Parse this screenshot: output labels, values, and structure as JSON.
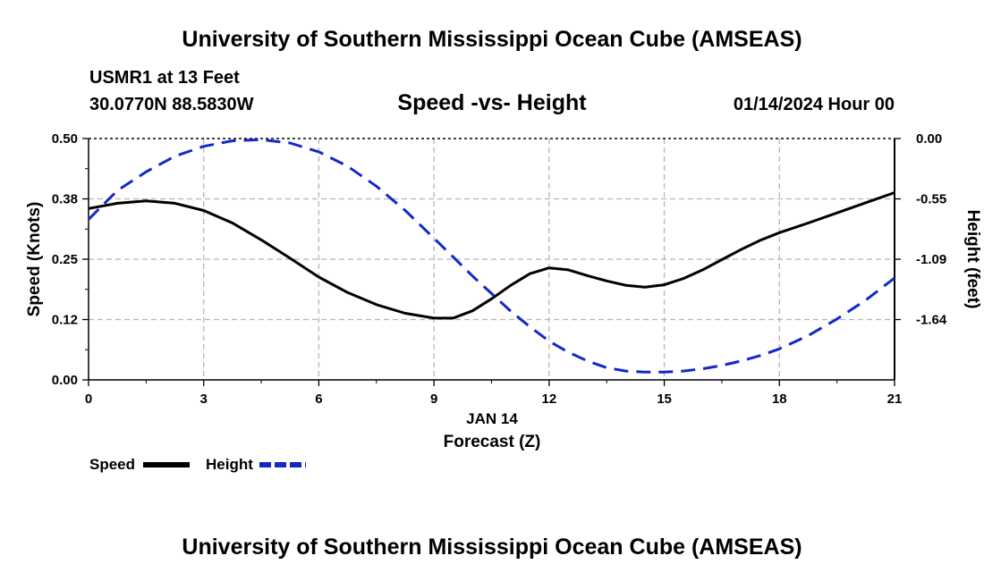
{
  "header": {
    "title": "University of Southern Mississippi Ocean Cube (AMSEAS)",
    "station": "USMR1 at 13 Feet",
    "coordinates": "30.0770N  88.5830W",
    "chart_title": "Speed -vs- Height",
    "datetime": "01/14/2024 Hour 00"
  },
  "footer": {
    "title": "University of Southern Mississippi Ocean Cube (AMSEAS)"
  },
  "chart_data": {
    "type": "line",
    "title": "Speed -vs- Height",
    "x": [
      0,
      0.75,
      1.5,
      2.25,
      3,
      3.75,
      4.5,
      5.25,
      6,
      6.75,
      7.5,
      8.25,
      9,
      9.5,
      10,
      10.5,
      11,
      11.5,
      12,
      12.5,
      13,
      13.5,
      14,
      14.5,
      15,
      15.5,
      16,
      16.5,
      17,
      17.5,
      18,
      18.75,
      19.5,
      20.25,
      21
    ],
    "xlabel": "Forecast (Z)",
    "xlabel_date": "JAN 14",
    "xlim": [
      0,
      21
    ],
    "xticks": [
      "0",
      "3",
      "6",
      "9",
      "12",
      "15",
      "18",
      "21"
    ],
    "grid": true,
    "series": [
      {
        "name": "Speed",
        "axis": "left",
        "color": "#000000",
        "dash": "solid",
        "values": [
          0.355,
          0.366,
          0.371,
          0.366,
          0.351,
          0.325,
          0.29,
          0.252,
          0.213,
          0.181,
          0.156,
          0.138,
          0.128,
          0.128,
          0.143,
          0.168,
          0.196,
          0.22,
          0.232,
          0.228,
          0.216,
          0.205,
          0.196,
          0.192,
          0.197,
          0.21,
          0.228,
          0.249,
          0.27,
          0.289,
          0.305,
          0.325,
          0.346,
          0.367,
          0.388
        ]
      },
      {
        "name": "Height",
        "axis": "right",
        "color": "#1428c8",
        "dash": "dashed",
        "values": [
          -0.73,
          -0.47,
          -0.3,
          -0.16,
          -0.07,
          -0.02,
          -0.01,
          -0.04,
          -0.12,
          -0.25,
          -0.43,
          -0.65,
          -0.9,
          -1.07,
          -1.24,
          -1.4,
          -1.56,
          -1.7,
          -1.83,
          -1.93,
          -2.01,
          -2.07,
          -2.1,
          -2.11,
          -2.11,
          -2.1,
          -2.08,
          -2.05,
          -2.01,
          -1.96,
          -1.9,
          -1.78,
          -1.63,
          -1.46,
          -1.26
        ]
      }
    ],
    "y_left": {
      "label": "Speed (Knots)",
      "range": [
        0,
        0.5
      ],
      "tick_values": [
        0,
        0.125,
        0.25,
        0.375,
        0.5
      ],
      "tick_labels": [
        "0.00",
        "0.12",
        "0.25",
        "0.38",
        "0.50"
      ]
    },
    "y_right": {
      "label": "Height (feet)",
      "range": [
        -2.18,
        0
      ],
      "tick_values": [
        0,
        -0.545,
        -1.09,
        -1.635
      ],
      "tick_labels": [
        "0.00",
        "-0.55",
        "-1.09",
        "-1.64"
      ]
    },
    "legend": [
      {
        "label": "Speed",
        "color": "#000000",
        "dash": "solid"
      },
      {
        "label": "Height",
        "color": "#1428c8",
        "dash": "dashed"
      }
    ]
  }
}
